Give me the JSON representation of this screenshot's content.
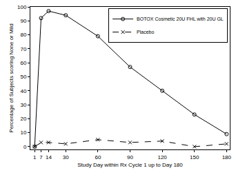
{
  "chart_data": {
    "type": "line",
    "x_label": "Study Day within Rx Cycle 1 up to Day 180",
    "y_label": "Percentage of Subjects scoring None or Mild",
    "x": [
      1,
      7,
      14,
      30,
      60,
      90,
      120,
      150,
      180
    ],
    "series": [
      {
        "name": "BOTOX Cosmetic 20U FHL with 20U GL",
        "color": "#000000",
        "marker": "circle",
        "line_style": "solid",
        "values": [
          0,
          92,
          97,
          94,
          79,
          57,
          40,
          23,
          9
        ]
      },
      {
        "name": "Placebo",
        "color": "#000000",
        "marker": "x",
        "line_style": "dash",
        "values": [
          0,
          3,
          3,
          2,
          5,
          3,
          4,
          0,
          2
        ]
      }
    ],
    "xlim": [
      -3,
      183
    ],
    "xticks": [
      1,
      7,
      14,
      30,
      60,
      90,
      120,
      150,
      180
    ],
    "ylim": [
      -2,
      100
    ],
    "yticks": [
      0,
      10,
      20,
      30,
      40,
      50,
      60,
      70,
      80,
      90,
      100
    ],
    "grid": false,
    "legend": "top-right"
  }
}
